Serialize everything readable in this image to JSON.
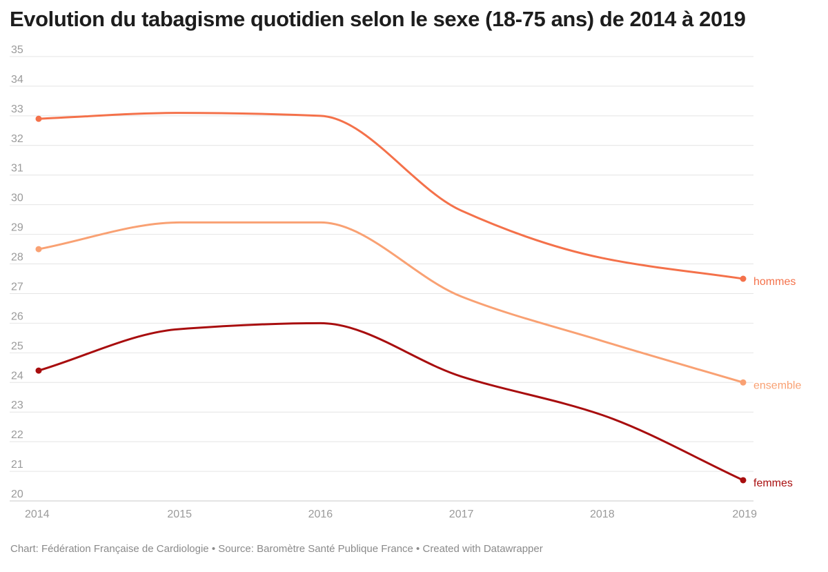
{
  "title": "Evolution du tabagisme quotidien selon le sexe (18-75 ans) de 2014 à 2019",
  "footer": "Chart: Fédération Française de Cardiologie • Source: Baromètre Santé Publique France • Created with Datawrapper",
  "chart_data": {
    "type": "line",
    "title": "Evolution du tabagisme quotidien selon le sexe (18-75 ans) de 2014 à 2019",
    "xlabel": "",
    "ylabel": "",
    "x": [
      2014,
      2015,
      2016,
      2017,
      2018,
      2019
    ],
    "x_tick_labels": [
      "2014",
      "2015",
      "2016",
      "2017",
      "2018",
      "2019"
    ],
    "ylim": [
      20,
      35
    ],
    "y_ticks": [
      20,
      21,
      22,
      23,
      24,
      25,
      26,
      27,
      28,
      29,
      30,
      31,
      32,
      33,
      34,
      35
    ],
    "grid": true,
    "legend": "direct labels at right end of lines",
    "series": [
      {
        "name": "hommes",
        "color": "#f4714a",
        "values": [
          32.9,
          33.1,
          33.0,
          29.8,
          28.2,
          27.5
        ]
      },
      {
        "name": "ensemble",
        "color": "#f9a173",
        "values": [
          28.5,
          29.4,
          29.4,
          26.9,
          25.4,
          24.0
        ]
      },
      {
        "name": "femmes",
        "color": "#a80d0e",
        "values": [
          24.4,
          25.8,
          26.0,
          24.2,
          22.9,
          20.7
        ]
      }
    ]
  }
}
